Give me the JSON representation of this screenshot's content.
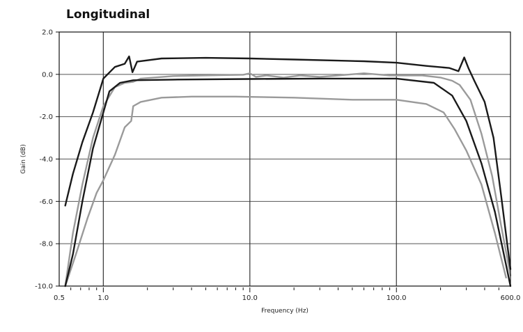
{
  "chart_data": {
    "type": "line",
    "title": "Longitudinal",
    "xlabel": "Frequency (Hz)",
    "ylabel": "Gain (dB)",
    "xscale": "log",
    "xlim": [
      0.5,
      600.0
    ],
    "ylim": [
      -10.0,
      2.0
    ],
    "x_ticks": [
      {
        "value": 0.5,
        "label": "0.5"
      },
      {
        "value": 1.0,
        "label": "1.0"
      },
      {
        "value": 10.0,
        "label": "10.0"
      },
      {
        "value": 100.0,
        "label": "100.0"
      },
      {
        "value": 600.0,
        "label": "600.0"
      }
    ],
    "y_ticks": [
      {
        "value": 2.0,
        "label": "2.0"
      },
      {
        "value": 0.0,
        "label": "0.0"
      },
      {
        "value": -2.0,
        "label": "-2.0"
      },
      {
        "value": -4.0,
        "label": "-4.0"
      },
      {
        "value": -6.0,
        "label": "-6.0"
      },
      {
        "value": -8.0,
        "label": "-8.0"
      },
      {
        "value": -10.0,
        "label": "-10.0"
      }
    ],
    "grid": true,
    "series": [
      {
        "color": "#9a9a9a",
        "points": [
          [
            0.55,
            -10.0
          ],
          [
            0.62,
            -7.5
          ],
          [
            0.72,
            -5.2
          ],
          [
            0.85,
            -3.0
          ],
          [
            1.0,
            -1.5
          ],
          [
            1.2,
            -0.6
          ],
          [
            1.4,
            -0.4
          ],
          [
            1.6,
            -0.35
          ],
          [
            1.8,
            -0.2
          ],
          [
            3.0,
            -0.08
          ],
          [
            6.0,
            -0.04
          ],
          [
            9.0,
            -0.02
          ],
          [
            10.0,
            0.05
          ],
          [
            11.0,
            -0.12
          ],
          [
            13.0,
            -0.05
          ],
          [
            17.0,
            -0.15
          ],
          [
            22.0,
            -0.05
          ],
          [
            30.0,
            -0.12
          ],
          [
            40.0,
            -0.05
          ],
          [
            60.0,
            0.05
          ],
          [
            90.0,
            -0.05
          ],
          [
            150.0,
            -0.05
          ],
          [
            200.0,
            -0.15
          ],
          [
            240.0,
            -0.3
          ],
          [
            270.0,
            -0.5
          ],
          [
            320.0,
            -1.2
          ],
          [
            380.0,
            -2.8
          ],
          [
            450.0,
            -4.8
          ],
          [
            520.0,
            -7.2
          ],
          [
            600.0,
            -9.5
          ]
        ]
      },
      {
        "color": "#1a1a1a",
        "points": [
          [
            0.55,
            -6.2
          ],
          [
            0.62,
            -4.7
          ],
          [
            0.72,
            -3.2
          ],
          [
            0.85,
            -1.8
          ],
          [
            1.0,
            -0.2
          ],
          [
            1.2,
            0.35
          ],
          [
            1.4,
            0.5
          ],
          [
            1.5,
            0.85
          ],
          [
            1.58,
            0.1
          ],
          [
            1.7,
            0.6
          ],
          [
            2.5,
            0.75
          ],
          [
            5.0,
            0.78
          ],
          [
            10.0,
            0.75
          ],
          [
            20.0,
            0.7
          ],
          [
            40.0,
            0.65
          ],
          [
            60.0,
            0.62
          ],
          [
            100.0,
            0.55
          ],
          [
            160.0,
            0.4
          ],
          [
            230.0,
            0.3
          ],
          [
            265.0,
            0.15
          ],
          [
            290.0,
            0.8
          ],
          [
            310.0,
            0.3
          ],
          [
            340.0,
            -0.3
          ],
          [
            400.0,
            -1.3
          ],
          [
            460.0,
            -3.0
          ],
          [
            520.0,
            -5.8
          ],
          [
            570.0,
            -8.0
          ],
          [
            600.0,
            -9.2
          ]
        ]
      },
      {
        "color": "#9a9a9a",
        "points": [
          [
            0.55,
            -10.0
          ],
          [
            0.65,
            -8.5
          ],
          [
            0.78,
            -6.8
          ],
          [
            0.9,
            -5.6
          ],
          [
            1.0,
            -5.0
          ],
          [
            1.2,
            -3.8
          ],
          [
            1.4,
            -2.5
          ],
          [
            1.55,
            -2.2
          ],
          [
            1.6,
            -1.5
          ],
          [
            1.8,
            -1.3
          ],
          [
            2.5,
            -1.1
          ],
          [
            4.0,
            -1.05
          ],
          [
            8.0,
            -1.05
          ],
          [
            20.0,
            -1.1
          ],
          [
            50.0,
            -1.2
          ],
          [
            100.0,
            -1.2
          ],
          [
            160.0,
            -1.4
          ],
          [
            210.0,
            -1.8
          ],
          [
            250.0,
            -2.6
          ],
          [
            300.0,
            -3.6
          ],
          [
            380.0,
            -5.2
          ],
          [
            470.0,
            -7.5
          ],
          [
            560.0,
            -9.6
          ]
        ]
      },
      {
        "color": "#1a1a1a",
        "points": [
          [
            0.55,
            -10.0
          ],
          [
            0.62,
            -8.5
          ],
          [
            0.72,
            -6.0
          ],
          [
            0.85,
            -3.5
          ],
          [
            1.0,
            -1.8
          ],
          [
            1.1,
            -0.8
          ],
          [
            1.3,
            -0.4
          ],
          [
            1.6,
            -0.28
          ],
          [
            3.0,
            -0.25
          ],
          [
            10.0,
            -0.22
          ],
          [
            30.0,
            -0.2
          ],
          [
            100.0,
            -0.2
          ],
          [
            180.0,
            -0.4
          ],
          [
            240.0,
            -1.0
          ],
          [
            300.0,
            -2.2
          ],
          [
            380.0,
            -4.2
          ],
          [
            470.0,
            -6.5
          ],
          [
            560.0,
            -9.0
          ],
          [
            600.0,
            -10.0
          ]
        ]
      }
    ]
  }
}
